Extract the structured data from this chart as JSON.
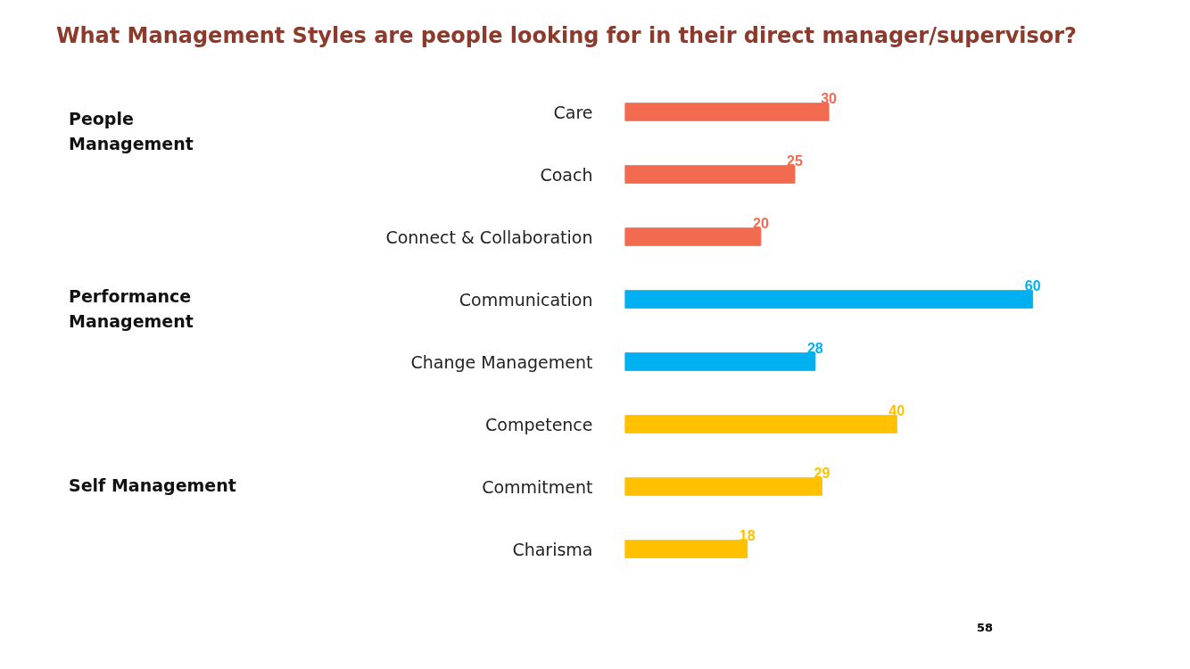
{
  "chart_data": {
    "type": "bar",
    "orientation": "horizontal",
    "title": "What Management Styles are people looking for in their direct manager/supervisor?",
    "categories": [
      "Care",
      "Coach",
      "Connect & Collaboration",
      "Communication",
      "Change Management",
      "Competence",
      "Commitment",
      "Charisma"
    ],
    "values": [
      30,
      25,
      20,
      60,
      28,
      40,
      29,
      18
    ],
    "colors": [
      "#f26b50",
      "#f26b50",
      "#f26b50",
      "#00b0f0",
      "#00b0f0",
      "#ffc000",
      "#ffc000",
      "#ffc000"
    ],
    "data_labels": true,
    "tick_labels": "y",
    "grid": false,
    "annotations": [
      "People Management",
      "Performance Management",
      "Self Management",
      "58"
    ]
  }
}
